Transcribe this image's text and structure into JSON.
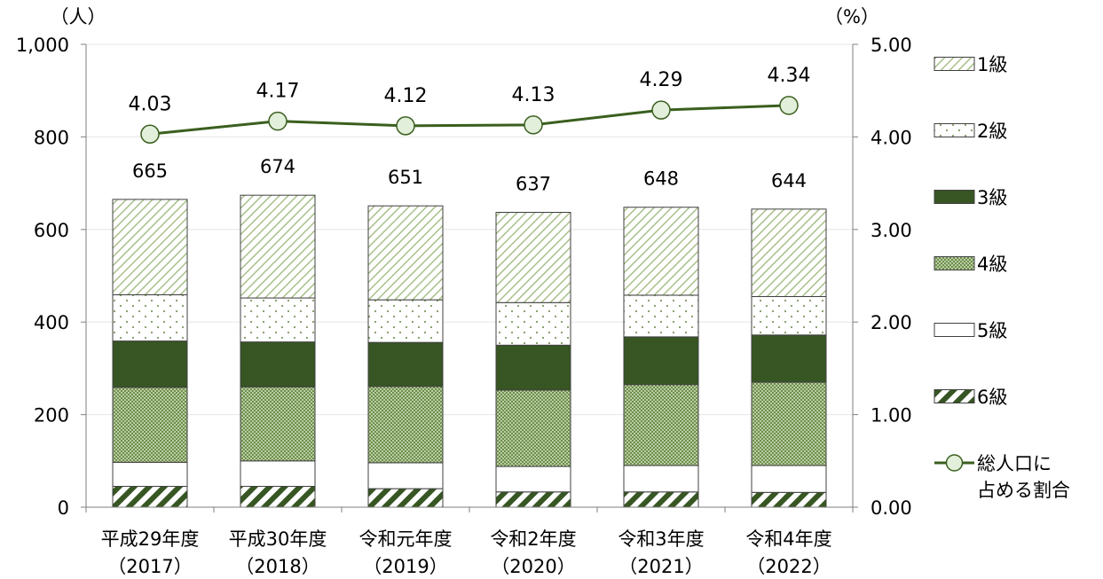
{
  "chart_data": {
    "type": "bar",
    "stacked": true,
    "categories": [
      "平成29年度",
      "平成30年度",
      "令和元年度",
      "令和2年度",
      "令和3年度",
      "令和4年度"
    ],
    "category_years": [
      "（2017）",
      "（2018）",
      "（2019）",
      "（2020）",
      "（2021）",
      "（2022）"
    ],
    "left_axis": {
      "unit": "（人）",
      "ylim": [
        0,
        1000
      ],
      "ticks": [
        {
          "v": 0,
          "label": "0"
        },
        {
          "v": 200,
          "label": "200"
        },
        {
          "v": 400,
          "label": "400"
        },
        {
          "v": 600,
          "label": "600"
        },
        {
          "v": 800,
          "label": "800"
        },
        {
          "v": 1000,
          "label": "1,000"
        }
      ]
    },
    "right_axis": {
      "unit": "（%）",
      "ylim": [
        0,
        5
      ],
      "ticks": [
        {
          "v": 0,
          "label": "0.00"
        },
        {
          "v": 1,
          "label": "1.00"
        },
        {
          "v": 2,
          "label": "2.00"
        },
        {
          "v": 3,
          "label": "3.00"
        },
        {
          "v": 4,
          "label": "4.00"
        },
        {
          "v": 5,
          "label": "5.00"
        }
      ]
    },
    "series": [
      {
        "name": "6級",
        "pattern": "diag-dark",
        "values": [
          45,
          45,
          40,
          33,
          33,
          32
        ]
      },
      {
        "name": "5級",
        "pattern": "white",
        "values": [
          52,
          55,
          56,
          55,
          57,
          58
        ]
      },
      {
        "name": "4級",
        "pattern": "checker",
        "values": [
          162,
          160,
          165,
          165,
          175,
          180
        ]
      },
      {
        "name": "3級",
        "pattern": "solid-dark",
        "values": [
          100,
          97,
          95,
          97,
          103,
          102
        ]
      },
      {
        "name": "2級",
        "pattern": "dots",
        "values": [
          100,
          95,
          92,
          92,
          90,
          83
        ]
      },
      {
        "name": "1級",
        "pattern": "diag-light",
        "values": [
          206,
          222,
          203,
          195,
          190,
          189
        ]
      }
    ],
    "totals": [
      665,
      674,
      651,
      637,
      648,
      644
    ],
    "line_series": {
      "name": "総人口に占める割合",
      "axis": "right",
      "values": [
        4.03,
        4.17,
        4.12,
        4.13,
        4.29,
        4.34
      ],
      "labels": [
        "4.03",
        "4.17",
        "4.12",
        "4.13",
        "4.29",
        "4.34"
      ]
    },
    "legend": {
      "placement": "right",
      "items": [
        "1級",
        "2級",
        "3級",
        "4級",
        "5級",
        "6級"
      ],
      "line_label_lines": [
        "総人口に",
        "占める割合"
      ]
    },
    "colors": {
      "dark_green": "#375623",
      "line_green": "#3A5F1E",
      "marker_fill": "#E2EFDA",
      "light_green_pattern": "#A9C08A",
      "check_green": "#6E8F4C",
      "dot_color": "#7F9A61",
      "axis": "#7F7F7F",
      "grid": "#E6E6E6"
    }
  }
}
